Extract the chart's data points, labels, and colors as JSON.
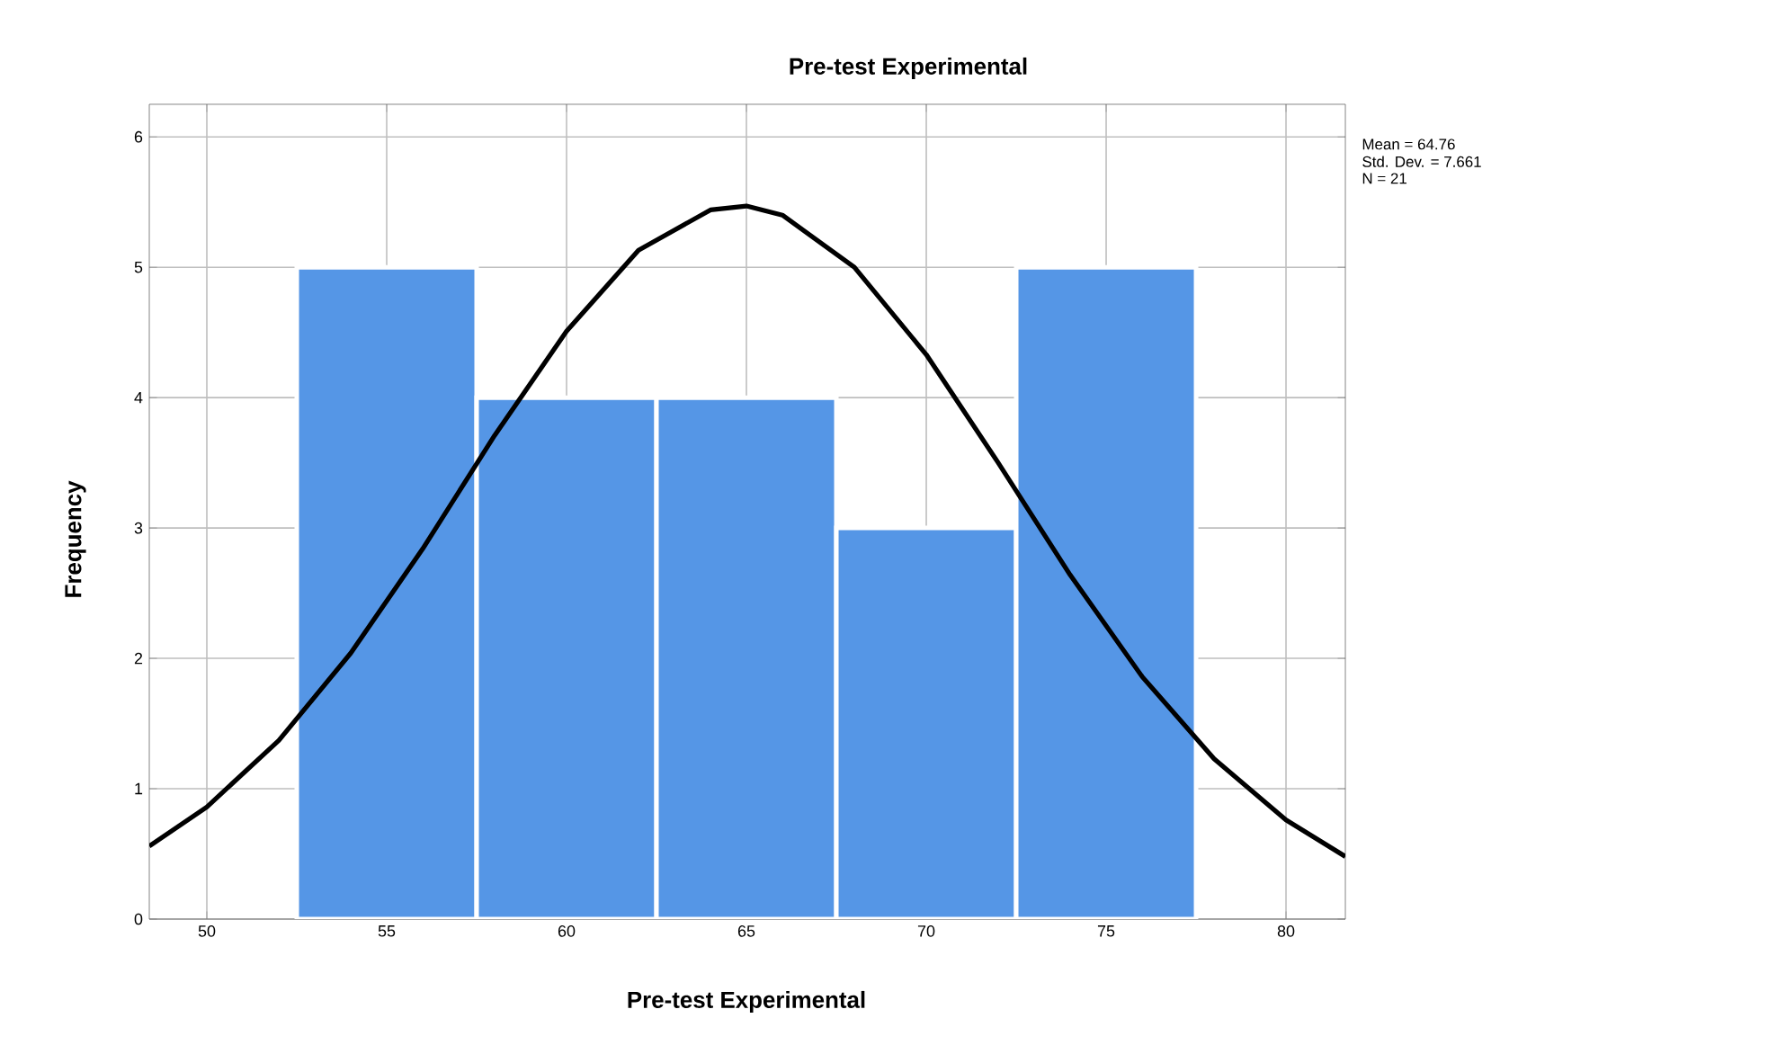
{
  "chart_data": {
    "type": "histogram",
    "title": "Pre-test Experimental",
    "xlabel": "Pre-test Experimental",
    "ylabel": "Frequency",
    "annotations": [
      "Mean = 64.76",
      "Std. Dev. = 7.661",
      "N = 21"
    ],
    "series": [
      {
        "color": "#5596e6",
        "bins": [
          52.5,
          57.5,
          62.5,
          67.5,
          72.5,
          77.5
        ],
        "values": [
          5,
          4,
          4,
          3,
          5
        ]
      },
      {
        "type": "line",
        "color": "#000000",
        "x": [
          48.4,
          50,
          52,
          54,
          56,
          58,
          60,
          62,
          64,
          65,
          66,
          68,
          70,
          72,
          74,
          76,
          78,
          80,
          81.65
        ],
        "values": [
          0.56,
          0.86,
          1.37,
          2.04,
          2.84,
          3.71,
          4.51,
          5.13,
          5.44,
          5.47,
          5.4,
          5.0,
          4.33,
          3.5,
          2.64,
          1.86,
          1.23,
          0.76,
          0.48
        ]
      }
    ],
    "xlim": [
      48.4,
      81.65
    ],
    "ylim": [
      0,
      6.25
    ],
    "xticks": [
      50,
      55,
      60,
      65,
      70,
      75,
      80
    ],
    "yticks": [
      0,
      1,
      2,
      3,
      4,
      5,
      6
    ],
    "grid": true,
    "marker": "none",
    "line_style": "solid"
  }
}
